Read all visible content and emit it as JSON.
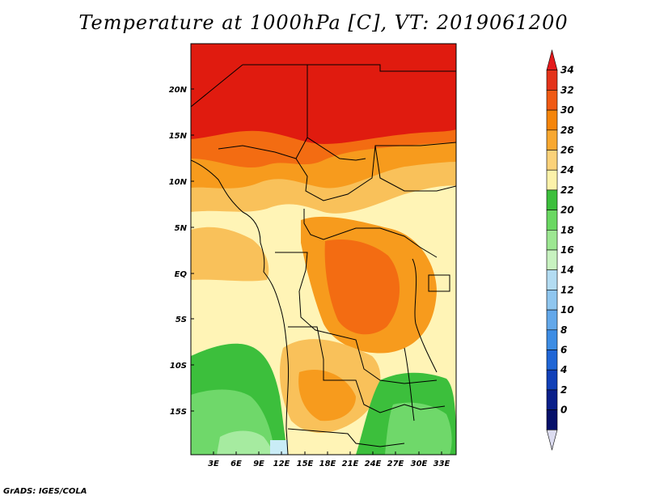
{
  "title": "Temperature at 1000hPa [C], VT: 2019061200",
  "credit": "GrADS: IGES/COLA",
  "map": {
    "lat_ticks": [
      "20N",
      "15N",
      "10N",
      "5N",
      "EQ",
      "5S",
      "10S",
      "15S"
    ],
    "lon_ticks": [
      "3E",
      "6E",
      "9E",
      "12E",
      "15E",
      "18E",
      "21E",
      "24E",
      "27E",
      "30E",
      "33E"
    ]
  },
  "colorbar": {
    "labels": [
      "34",
      "32",
      "30",
      "28",
      "26",
      "24",
      "22",
      "20",
      "18",
      "16",
      "14",
      "12",
      "10",
      "8",
      "6",
      "4",
      "2",
      "0"
    ],
    "colors": [
      "#e41a1c",
      "#e4331a",
      "#f05a14",
      "#f5850a",
      "#f8a830",
      "#fbd27a",
      "#fcf2aa",
      "#3cbf3c",
      "#6ad862",
      "#9de792",
      "#c8f2c0",
      "#b3dcf2",
      "#8fc6ef",
      "#63a8ea",
      "#3d8de4",
      "#2066d6",
      "#1140b8",
      "#0a1f8a",
      "#06106a",
      "#dcdcf0"
    ]
  },
  "colors": {
    "hot": "#e01b0f",
    "warm": "#f36c12",
    "orange": "#f79b1d",
    "light_orange": "#f9c15a",
    "pale": "#fde99c",
    "cream": "#fff4b6",
    "green": "#3cbf3c",
    "light_green": "#6fd86a",
    "pale_green": "#a6eba0",
    "sea_blue": "#c9ecf6"
  }
}
